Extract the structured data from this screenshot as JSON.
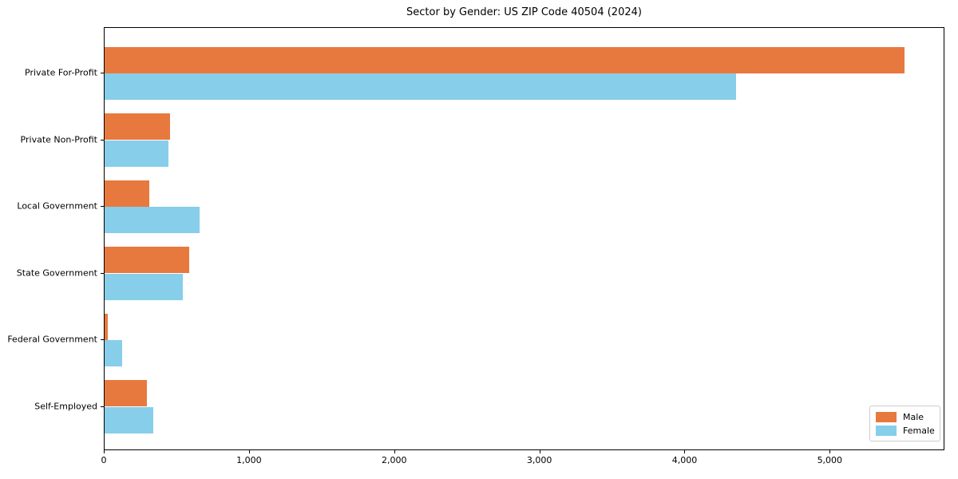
{
  "chart_data": {
    "type": "bar",
    "orientation": "horizontal",
    "title": "Sector by Gender: US ZIP Code 40504 (2024)",
    "categories": [
      "Private For-Profit",
      "Private Non-Profit",
      "Local Government",
      "State Government",
      "Federal Government",
      "Self-Employed"
    ],
    "series": [
      {
        "name": "Male",
        "color": "#E8793E",
        "values": [
          5510,
          450,
          310,
          585,
          20,
          290
        ]
      },
      {
        "name": "Female",
        "color": "#87CEEB",
        "values": [
          4350,
          440,
          655,
          540,
          120,
          335
        ]
      }
    ],
    "xlabel": "",
    "ylabel": "",
    "xlim": [
      0,
      5790
    ],
    "xticks": [
      0,
      1000,
      2000,
      3000,
      4000,
      5000
    ],
    "xtick_labels": [
      "0",
      "1,000",
      "2,000",
      "3,000",
      "4,000",
      "5,000"
    ],
    "grid": false,
    "legend": {
      "position": "lower right",
      "entries": [
        "Male",
        "Female"
      ]
    }
  }
}
